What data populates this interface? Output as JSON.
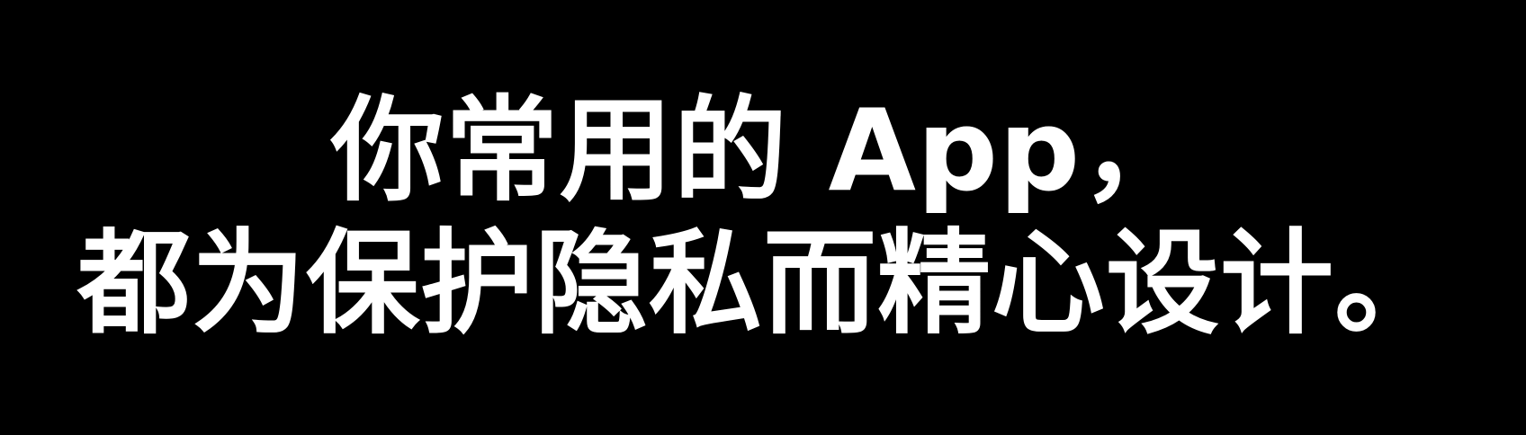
{
  "headline": {
    "line_1": "你常用的 App，",
    "line_2": "都为保护隐私而精心设计。"
  },
  "colors": {
    "background": "#000000",
    "text": "#ffffff"
  }
}
